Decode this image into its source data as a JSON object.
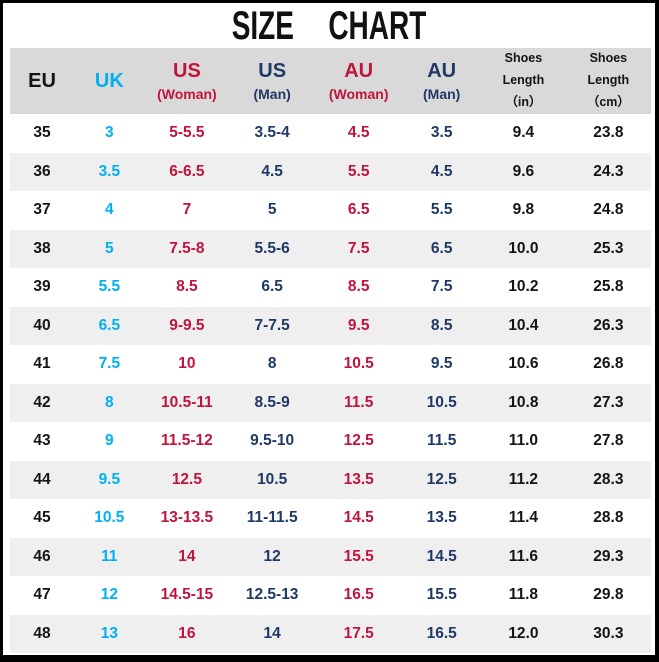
{
  "title": "SIZE CHART",
  "palette": {
    "black": "#141414",
    "cyan": "#00b0f0",
    "red": "#c0143c",
    "navy": "#1f3864",
    "header_bg": "#d9d9d9",
    "stripe_bg": "#efeff0",
    "frame_border": "#000000"
  },
  "chart_data": {
    "type": "table",
    "title": "SIZE CHART",
    "legend_position": "none",
    "grid": false,
    "columns": [
      {
        "id": "eu",
        "label_lines": [
          "EU"
        ],
        "style": "single",
        "color": "black"
      },
      {
        "id": "uk",
        "label_lines": [
          "UK"
        ],
        "style": "single",
        "color": "cyan"
      },
      {
        "id": "us-woman",
        "label_lines": [
          "US",
          "(Woman)"
        ],
        "style": "double",
        "color": "red"
      },
      {
        "id": "us-man",
        "label_lines": [
          "US",
          "(Man)"
        ],
        "style": "double",
        "color": "navy"
      },
      {
        "id": "au-woman",
        "label_lines": [
          "AU",
          "(Woman)"
        ],
        "style": "double",
        "color": "red"
      },
      {
        "id": "au-man",
        "label_lines": [
          "AU",
          "(Man)"
        ],
        "style": "double",
        "color": "navy"
      },
      {
        "id": "length-in",
        "label_lines": [
          "Shoes",
          "Length",
          "（in）"
        ],
        "style": "triple",
        "color": "black"
      },
      {
        "id": "length-cm",
        "label_lines": [
          "Shoes",
          "Length",
          "（cm）"
        ],
        "style": "triple",
        "color": "black"
      }
    ],
    "rows": [
      [
        "35",
        "3",
        "5-5.5",
        "3.5-4",
        "4.5",
        "3.5",
        "9.4",
        "23.8"
      ],
      [
        "36",
        "3.5",
        "6-6.5",
        "4.5",
        "5.5",
        "4.5",
        "9.6",
        "24.3"
      ],
      [
        "37",
        "4",
        "7",
        "5",
        "6.5",
        "5.5",
        "9.8",
        "24.8"
      ],
      [
        "38",
        "5",
        "7.5-8",
        "5.5-6",
        "7.5",
        "6.5",
        "10.0",
        "25.3"
      ],
      [
        "39",
        "5.5",
        "8.5",
        "6.5",
        "8.5",
        "7.5",
        "10.2",
        "25.8"
      ],
      [
        "40",
        "6.5",
        "9-9.5",
        "7-7.5",
        "9.5",
        "8.5",
        "10.4",
        "26.3"
      ],
      [
        "41",
        "7.5",
        "10",
        "8",
        "10.5",
        "9.5",
        "10.6",
        "26.8"
      ],
      [
        "42",
        "8",
        "10.5-11",
        "8.5-9",
        "11.5",
        "10.5",
        "10.8",
        "27.3"
      ],
      [
        "43",
        "9",
        "11.5-12",
        "9.5-10",
        "12.5",
        "11.5",
        "11.0",
        "27.8"
      ],
      [
        "44",
        "9.5",
        "12.5",
        "10.5",
        "13.5",
        "12.5",
        "11.2",
        "28.3"
      ],
      [
        "45",
        "10.5",
        "13-13.5",
        "11-11.5",
        "14.5",
        "13.5",
        "11.4",
        "28.8"
      ],
      [
        "46",
        "11",
        "14",
        "12",
        "15.5",
        "14.5",
        "11.6",
        "29.3"
      ],
      [
        "47",
        "12",
        "14.5-15",
        "12.5-13",
        "16.5",
        "15.5",
        "11.8",
        "29.8"
      ],
      [
        "48",
        "13",
        "16",
        "14",
        "17.5",
        "16.5",
        "12.0",
        "30.3"
      ]
    ]
  }
}
